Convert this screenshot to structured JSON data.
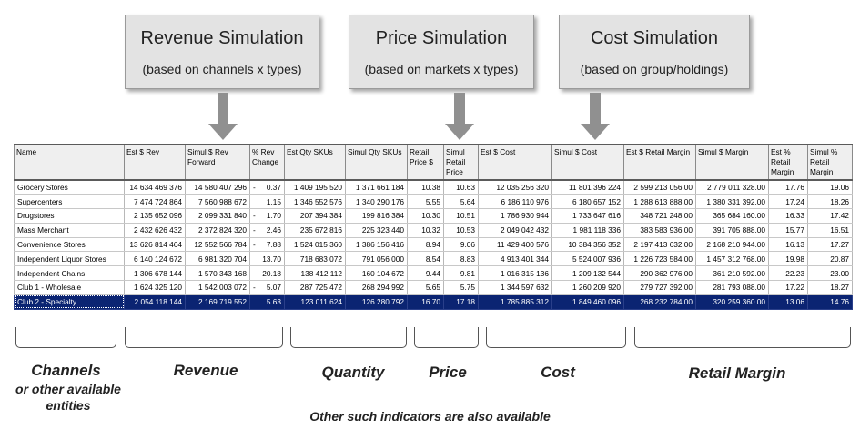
{
  "callouts": [
    {
      "title": "Revenue Simulation",
      "subtitle": "(based on channels x types)"
    },
    {
      "title": "Price Simulation",
      "subtitle": "(based on markets x types)"
    },
    {
      "title": "Cost Simulation",
      "subtitle": "(based on group/holdings)"
    }
  ],
  "table": {
    "headers": [
      "Name",
      "Est $ Rev",
      "Simul $ Rev Forward",
      "% Rev Change",
      "Est Qty SKUs",
      "Simul Qty SKUs",
      "Retail Price $",
      "Simul Retail Price",
      "Est $ Cost",
      "Simul $ Cost",
      "Est $ Retail Margin",
      "Simul $ Margin",
      "Est % Retail Margin",
      "Simul % Retail Margin"
    ],
    "rows": [
      {
        "name": "Grocery Stores",
        "est_rev": "14 634 469 376",
        "simul_rev": "14 580 407 296",
        "rev_change_sign": "-",
        "rev_change": "0.37",
        "est_qty": "1 409 195 520",
        "simul_qty": "1 371 661 184",
        "retail_price": "10.38",
        "simul_price": "10.63",
        "est_cost": "12 035 256 320",
        "simul_cost": "11 801 396 224",
        "est_margin": "2 599 213 056.00",
        "simul_margin": "2 779 011 328.00",
        "est_pct": "17.76",
        "simul_pct": "19.06"
      },
      {
        "name": "Supercenters",
        "est_rev": "7 474 724 864",
        "simul_rev": "7 560 988 672",
        "rev_change_sign": "",
        "rev_change": "1.15",
        "est_qty": "1 346 552 576",
        "simul_qty": "1 340 290 176",
        "retail_price": "5.55",
        "simul_price": "5.64",
        "est_cost": "6 186 110 976",
        "simul_cost": "6 180 657 152",
        "est_margin": "1 288 613 888.00",
        "simul_margin": "1 380 331 392.00",
        "est_pct": "17.24",
        "simul_pct": "18.26"
      },
      {
        "name": "Drugstores",
        "est_rev": "2 135 652 096",
        "simul_rev": "2 099 331 840",
        "rev_change_sign": "-",
        "rev_change": "1.70",
        "est_qty": "207 394 384",
        "simul_qty": "199 816 384",
        "retail_price": "10.30",
        "simul_price": "10.51",
        "est_cost": "1 786 930 944",
        "simul_cost": "1 733 647 616",
        "est_margin": "348 721 248.00",
        "simul_margin": "365 684 160.00",
        "est_pct": "16.33",
        "simul_pct": "17.42"
      },
      {
        "name": "Mass Merchant",
        "est_rev": "2 432 626 432",
        "simul_rev": "2 372 824 320",
        "rev_change_sign": "-",
        "rev_change": "2.46",
        "est_qty": "235 672 816",
        "simul_qty": "225 323 440",
        "retail_price": "10.32",
        "simul_price": "10.53",
        "est_cost": "2 049 042 432",
        "simul_cost": "1 981 118 336",
        "est_margin": "383 583 936.00",
        "simul_margin": "391 705 888.00",
        "est_pct": "15.77",
        "simul_pct": "16.51"
      },
      {
        "name": "Convenience Stores",
        "est_rev": "13 626 814 464",
        "simul_rev": "12 552 566 784",
        "rev_change_sign": "-",
        "rev_change": "7.88",
        "est_qty": "1 524 015 360",
        "simul_qty": "1 386 156 416",
        "retail_price": "8.94",
        "simul_price": "9.06",
        "est_cost": "11 429 400 576",
        "simul_cost": "10 384 356 352",
        "est_margin": "2 197 413 632.00",
        "simul_margin": "2 168 210 944.00",
        "est_pct": "16.13",
        "simul_pct": "17.27"
      },
      {
        "name": "Independent Liquor Stores",
        "est_rev": "6 140 124 672",
        "simul_rev": "6 981 320 704",
        "rev_change_sign": "",
        "rev_change": "13.70",
        "est_qty": "718 683 072",
        "simul_qty": "791 056 000",
        "retail_price": "8.54",
        "simul_price": "8.83",
        "est_cost": "4 913 401 344",
        "simul_cost": "5 524 007 936",
        "est_margin": "1 226 723 584.00",
        "simul_margin": "1 457 312 768.00",
        "est_pct": "19.98",
        "simul_pct": "20.87"
      },
      {
        "name": "Independent Chains",
        "est_rev": "1 306 678 144",
        "simul_rev": "1 570 343 168",
        "rev_change_sign": "",
        "rev_change": "20.18",
        "est_qty": "138 412 112",
        "simul_qty": "160 104 672",
        "retail_price": "9.44",
        "simul_price": "9.81",
        "est_cost": "1 016 315 136",
        "simul_cost": "1 209 132 544",
        "est_margin": "290 362 976.00",
        "simul_margin": "361 210 592.00",
        "est_pct": "22.23",
        "simul_pct": "23.00"
      },
      {
        "name": "Club 1 - Wholesale",
        "est_rev": "1 624 325 120",
        "simul_rev": "1 542 003 072",
        "rev_change_sign": "-",
        "rev_change": "5.07",
        "est_qty": "287 725 472",
        "simul_qty": "268 294 992",
        "retail_price": "5.65",
        "simul_price": "5.75",
        "est_cost": "1 344 597 632",
        "simul_cost": "1 260 209 920",
        "est_margin": "279 727 392.00",
        "simul_margin": "281 793 088.00",
        "est_pct": "17.22",
        "simul_pct": "18.27"
      },
      {
        "name": "Club 2 - Specialty",
        "est_rev": "2 054 118 144",
        "simul_rev": "2 169 719 552",
        "rev_change_sign": "",
        "rev_change": "5.63",
        "est_qty": "123 011 624",
        "simul_qty": "126 280 792",
        "retail_price": "16.70",
        "simul_price": "17.18",
        "est_cost": "1 785 885 312",
        "simul_cost": "1 849 460 096",
        "est_margin": "268 232 784.00",
        "simul_margin": "320 259 360.00",
        "est_pct": "13.06",
        "simul_pct": "14.76",
        "selected": true
      }
    ]
  },
  "group_labels": {
    "channels": "Channels",
    "channels_sub1": "or other available",
    "channels_sub2": "entities",
    "revenue": "Revenue",
    "quantity": "Quantity",
    "price": "Price",
    "cost": "Cost",
    "retail_margin": "Retail Margin"
  },
  "footer": "Other such indicators are also available",
  "colors": {
    "callout_bg": "#e3e3e3",
    "arrow": "#909090",
    "selected_row": "#0b2472",
    "header_bg": "#efefef"
  }
}
